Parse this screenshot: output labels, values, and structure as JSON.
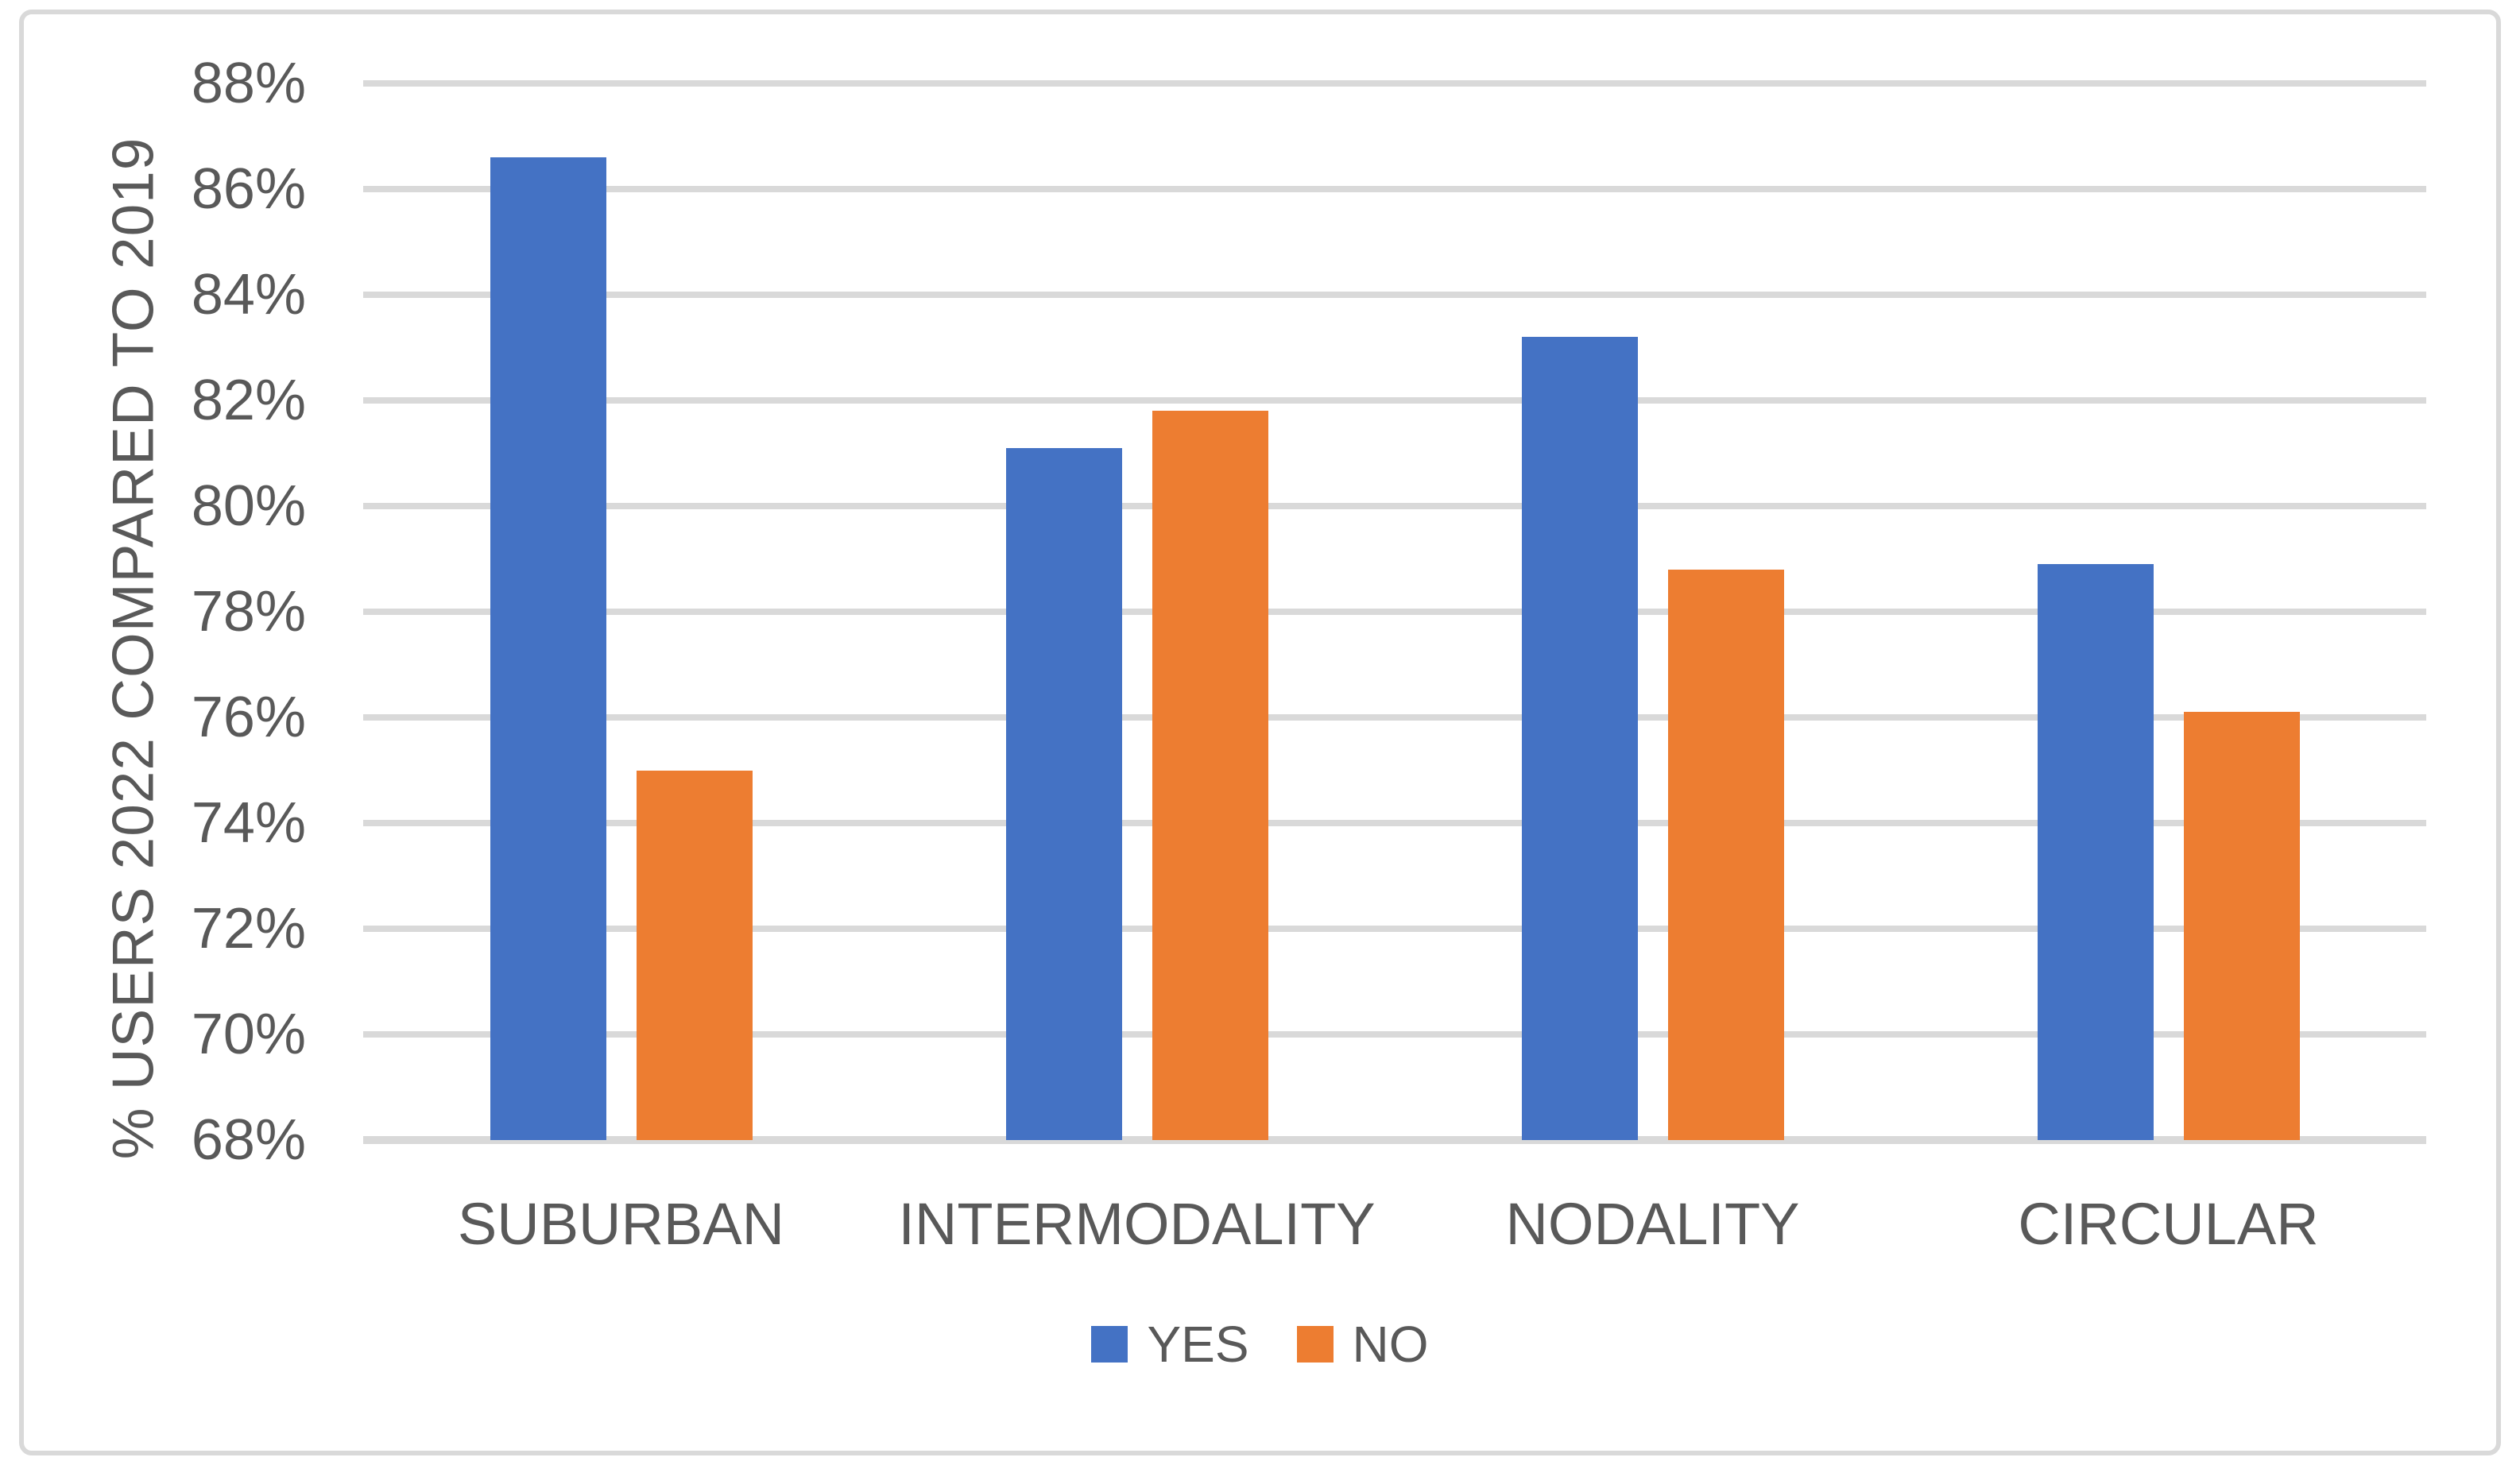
{
  "chart_data": {
    "type": "bar",
    "title": "",
    "categories": [
      "SUBURBAN",
      "INTERMODALITY",
      "NODALITY",
      "CIRCULAR"
    ],
    "series": [
      {
        "name": "YES",
        "color": "#4472C4",
        "values": [
          86.6,
          81.1,
          83.2,
          78.9
        ]
      },
      {
        "name": "NO",
        "color": "#ED7D31",
        "values": [
          75.0,
          81.8,
          78.8,
          76.1
        ]
      }
    ],
    "xlabel": "",
    "ylabel": "% USERS 2022 COMPARED TO 2019",
    "ylim": [
      68,
      88
    ],
    "ytick_step": 2,
    "yticks": [
      "88%",
      "86%",
      "84%",
      "82%",
      "80%",
      "78%",
      "76%",
      "74%",
      "72%",
      "70%",
      "68%"
    ],
    "grid": true,
    "legend_position": "bottom"
  },
  "colors": {
    "grid": "#D9D9D9",
    "frame_border": "#D9D9D9",
    "text": "#595959",
    "background": "#FFFFFF"
  }
}
